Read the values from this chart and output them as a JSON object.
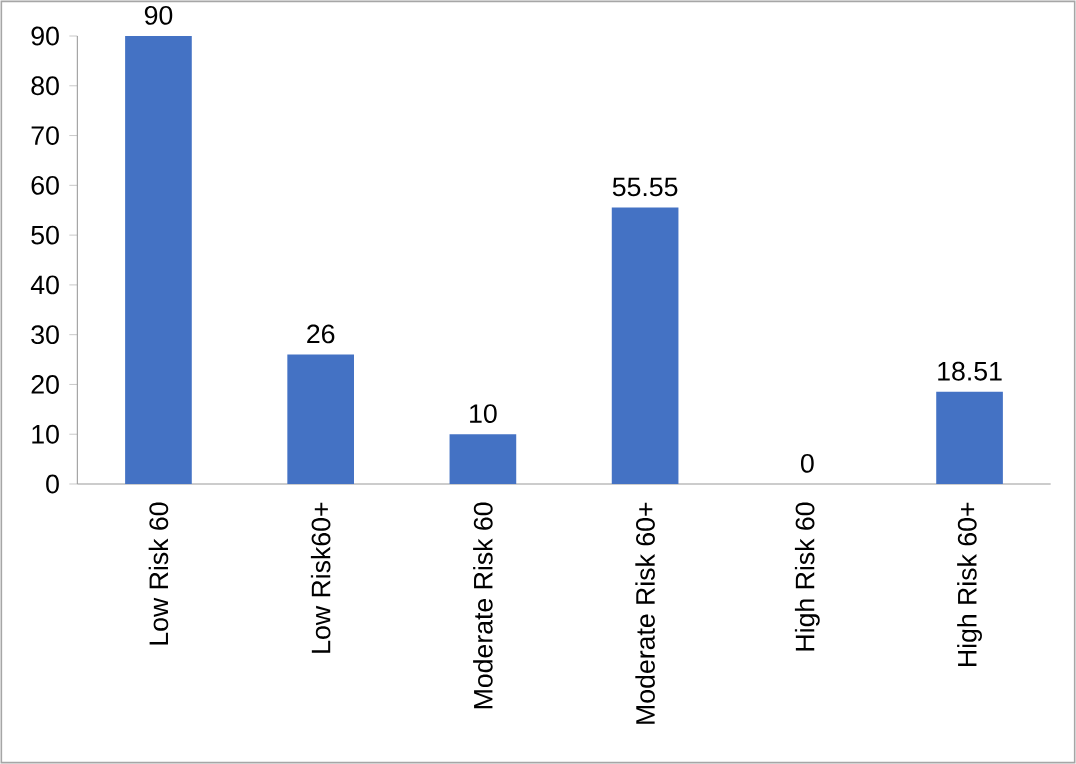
{
  "chart_data": {
    "type": "bar",
    "categories": [
      "Low Risk 60",
      "Low Risk60+",
      "Moderate Risk 60",
      "Moderate Risk 60+",
      "High Risk 60",
      "High Risk 60+"
    ],
    "values": [
      90,
      26,
      10,
      55.55,
      0,
      18.51
    ],
    "color": "#4472c4",
    "ylim": [
      0,
      90
    ],
    "yticks": [
      0,
      10,
      20,
      30,
      40,
      50,
      60,
      70,
      80,
      90
    ],
    "data_labels": true
  }
}
